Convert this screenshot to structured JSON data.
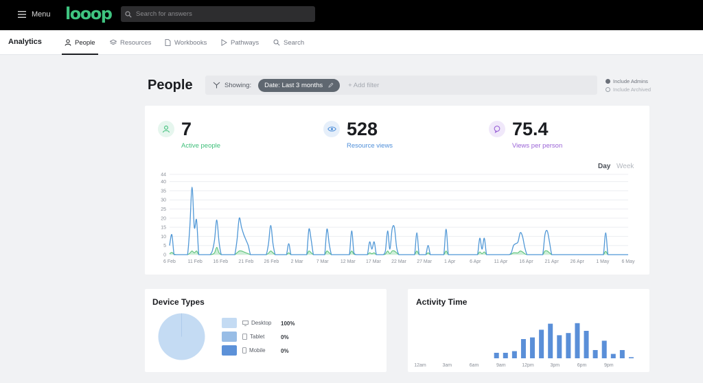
{
  "topbar": {
    "menu_label": "Menu",
    "logo_text": "looop",
    "search_placeholder": "Search for answers"
  },
  "subnav": {
    "section_title": "Analytics",
    "tabs": [
      {
        "label": "People",
        "icon": "person-icon",
        "active": true
      },
      {
        "label": "Resources",
        "icon": "layers-icon",
        "active": false
      },
      {
        "label": "Workbooks",
        "icon": "document-icon",
        "active": false
      },
      {
        "label": "Pathways",
        "icon": "play-icon",
        "active": false
      },
      {
        "label": "Search",
        "icon": "search-icon",
        "active": false
      }
    ]
  },
  "header": {
    "title": "People",
    "showing_label": "Showing:",
    "filter_chip": "Date: Last 3 months",
    "add_filter": "+ Add filter",
    "include_admins": "Include Admins",
    "include_archived": "Include Archived"
  },
  "stats": [
    {
      "value": "7",
      "label": "Active people",
      "color": "#3fbf7a",
      "bg": "#e6f6ee",
      "icon": "user-icon"
    },
    {
      "value": "528",
      "label": "Resource views",
      "color": "#4f8fd9",
      "bg": "#e6effa",
      "icon": "eye-icon"
    },
    {
      "value": "75.4",
      "label": "Views per person",
      "color": "#9a63d6",
      "bg": "#f0e8fa",
      "icon": "chat-icon"
    }
  ],
  "granularity": {
    "day": "Day",
    "week": "Week",
    "selected": "Day"
  },
  "device_types": {
    "title": "Device Types",
    "items": [
      {
        "label": "Desktop",
        "pct": "100%",
        "color": "#c4dbf3",
        "icon": "monitor-icon"
      },
      {
        "label": "Tablet",
        "pct": "0%",
        "color": "#98bde6",
        "icon": "tablet-icon"
      },
      {
        "label": "Mobile",
        "pct": "0%",
        "color": "#5c91d8",
        "icon": "phone-icon"
      }
    ]
  },
  "activity": {
    "title": "Activity Time"
  },
  "chart_data": [
    {
      "type": "line",
      "title": "",
      "xlabel": "",
      "ylabel": "",
      "ylim": [
        0,
        44
      ],
      "yticks": [
        "0",
        "5",
        "10",
        "15",
        "20",
        "25",
        "30",
        "35",
        "40",
        "44"
      ],
      "x_tick_labels": [
        "6 Feb",
        "11 Feb",
        "16 Feb",
        "21 Feb",
        "26 Feb",
        "2 Mar",
        "7 Mar",
        "12 Mar",
        "17 Mar",
        "22 Mar",
        "27 Mar",
        "1 Apr",
        "6 Apr",
        "11 Apr",
        "16 Apr",
        "21 Apr",
        "26 Apr",
        "1 May",
        "6 May"
      ],
      "grid": true,
      "series": [
        {
          "color": "#4f97d6",
          "values": [
            5,
            11,
            0,
            0,
            0,
            0,
            0,
            0,
            0,
            15,
            37,
            15,
            19,
            0,
            0,
            0,
            0,
            0,
            0,
            2,
            8,
            19,
            7,
            0,
            0,
            0,
            0,
            0,
            0,
            0,
            8,
            20,
            15,
            11,
            8,
            5,
            0,
            0,
            0,
            0,
            0,
            0,
            0,
            0,
            6,
            16,
            6,
            0,
            0,
            0,
            0,
            0,
            0,
            6,
            0,
            0,
            0,
            0,
            0,
            0,
            0,
            0,
            14,
            8,
            0,
            0,
            0,
            0,
            0,
            0,
            14,
            6,
            0,
            0,
            0,
            0,
            0,
            0,
            0,
            0,
            0,
            13,
            1,
            0,
            0,
            0,
            0,
            0,
            0,
            7,
            3,
            7,
            0,
            0,
            0,
            0,
            2,
            13,
            3,
            14,
            15,
            4,
            0,
            0,
            0,
            0,
            0,
            0,
            0,
            0,
            12,
            0,
            0,
            0,
            0,
            5,
            0,
            0,
            0,
            0,
            0,
            0,
            0,
            14,
            0,
            0,
            0,
            0,
            0,
            0,
            0,
            0,
            0,
            0,
            0,
            0,
            0,
            0,
            9,
            3,
            9,
            0,
            0,
            0,
            0,
            0,
            0,
            0,
            0,
            0,
            0,
            0,
            1,
            5,
            6,
            7,
            12,
            10,
            4,
            0,
            0,
            0,
            0,
            0,
            0,
            0,
            0,
            11,
            13,
            7,
            0,
            0,
            0,
            0,
            0,
            0,
            0,
            0,
            0,
            0,
            0,
            0,
            0,
            0,
            0,
            0,
            0,
            0,
            0,
            0,
            0,
            0,
            0,
            0,
            12,
            0,
            0,
            0,
            0,
            0,
            0,
            0,
            0,
            0,
            0
          ]
        },
        {
          "color": "#5cc27a",
          "values": [
            0.5,
            1.2,
            0.3,
            0,
            0,
            0,
            0,
            0,
            0,
            0.8,
            2,
            1,
            2,
            0,
            0,
            0,
            0,
            0,
            0,
            0.2,
            1,
            4,
            1,
            0,
            0,
            0,
            0,
            0,
            0,
            0,
            1,
            2,
            2,
            1.5,
            1,
            0.5,
            0,
            0,
            0,
            0,
            0,
            0,
            0,
            0,
            0.8,
            2,
            1,
            0,
            0,
            0,
            0,
            0,
            0,
            1,
            0,
            0,
            0,
            0,
            0,
            0,
            0,
            0,
            2,
            1,
            0,
            0,
            0,
            0,
            0,
            0,
            2,
            1,
            0,
            0,
            0,
            0,
            0,
            0,
            0,
            0,
            0,
            2,
            0.3,
            0,
            0,
            0,
            0,
            0,
            0,
            1,
            0.5,
            1,
            0,
            0,
            0,
            0,
            0.3,
            2,
            0.5,
            2,
            2,
            1,
            0,
            0,
            0,
            0,
            0,
            0,
            0,
            0,
            2,
            0,
            0,
            0,
            0,
            1,
            0,
            0,
            0,
            0,
            0,
            0,
            0,
            2,
            0,
            0,
            0,
            0,
            0,
            0,
            0,
            0,
            0,
            0,
            0,
            0,
            0,
            0,
            1.5,
            0.5,
            1.5,
            0,
            0,
            0,
            0,
            0,
            0,
            0,
            0,
            0,
            0,
            0,
            0.3,
            1,
            1,
            1,
            2,
            1.5,
            0.5,
            0,
            0,
            0,
            0,
            0,
            0,
            0,
            0,
            2,
            2,
            1,
            0,
            0,
            0,
            0,
            0,
            0,
            0,
            0,
            0,
            0,
            0,
            0,
            0,
            0,
            0,
            0,
            0,
            0,
            0,
            0,
            0,
            0,
            0,
            0,
            1.8,
            0,
            0,
            0,
            0,
            0,
            0,
            0,
            0,
            0,
            0
          ]
        }
      ]
    },
    {
      "type": "pie",
      "title": "Device Types",
      "categories": [
        "Desktop",
        "Tablet",
        "Mobile"
      ],
      "values": [
        100,
        0,
        0
      ]
    },
    {
      "type": "bar",
      "title": "Activity Time",
      "x_tick_labels": [
        "12am",
        "3am",
        "6am",
        "9am",
        "12pm",
        "3pm",
        "6pm",
        "9pm"
      ],
      "categories": [
        "12am",
        "1am",
        "2am",
        "3am",
        "4am",
        "5am",
        "6am",
        "7am",
        "8am",
        "9am",
        "10am",
        "11am",
        "12pm",
        "1pm",
        "2pm",
        "3pm",
        "4pm",
        "5pm",
        "6pm",
        "7pm",
        "8pm",
        "9pm",
        "10pm",
        "11pm"
      ],
      "values": [
        0,
        0,
        0,
        0,
        0,
        0,
        0,
        0,
        1,
        1,
        1.3,
        3.5,
        3.8,
        5.2,
        6.3,
        4.2,
        4.6,
        6.4,
        5,
        1.5,
        3.2,
        0.8,
        1.5,
        0.2
      ],
      "ylim": [
        0,
        7
      ],
      "color": "#5a8fd8"
    }
  ]
}
